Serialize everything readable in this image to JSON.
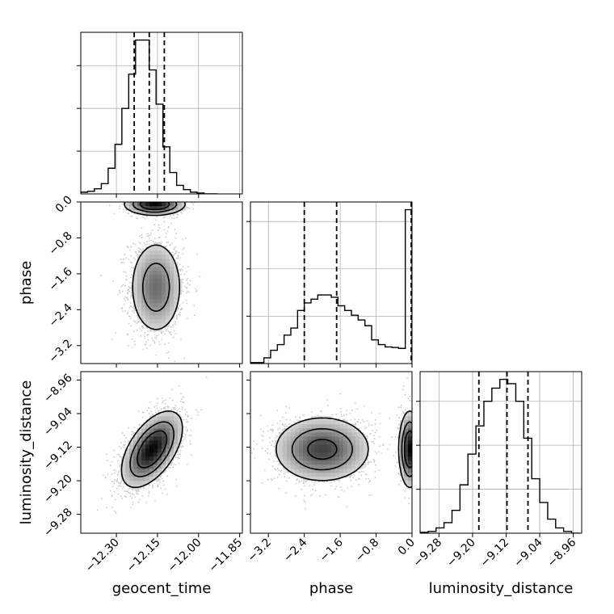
{
  "chart_data": {
    "type": "corner",
    "parameters": [
      "geocent_time",
      "phase",
      "luminosity_distance"
    ],
    "grid": true,
    "quantile_lines": "dashed",
    "axes": {
      "geocent_time": {
        "label": "geocent_time",
        "range": [
          -12.43,
          -11.84
        ],
        "ticks": [
          -12.3,
          -12.15,
          -12.0,
          -11.85
        ],
        "tick_labels": [
          "−12.30",
          "−12.15",
          "−12.00",
          "−11.85"
        ]
      },
      "phase": {
        "label": "phase",
        "range": [
          -3.6,
          0.0
        ],
        "ticks": [
          -3.2,
          -2.4,
          -1.6,
          -0.8,
          0.0
        ],
        "tick_labels": [
          "−3.2",
          "−2.4",
          "−1.6",
          "−0.8",
          "0.0"
        ]
      },
      "luminosity_distance": {
        "label": "luminosity_distance",
        "range": [
          -9.325,
          -8.94
        ],
        "ticks": [
          -9.28,
          -9.2,
          -9.12,
          -9.04,
          -8.96
        ],
        "tick_labels": [
          "−9.28",
          "−9.20",
          "−9.12",
          "−9.04",
          "−8.96"
        ]
      }
    },
    "histograms": {
      "geocent_time": {
        "bin_edges": [
          -12.43,
          -12.405,
          -12.38,
          -12.355,
          -12.33,
          -12.305,
          -12.28,
          -12.255,
          -12.23,
          -12.205,
          -12.18,
          -12.155,
          -12.13,
          -12.105,
          -12.08,
          -12.055,
          -12.03,
          -12.005,
          -11.98,
          -11.955,
          -11.93
        ],
        "counts": [
          2,
          3,
          6,
          12,
          30,
          58,
          100,
          140,
          180,
          180,
          145,
          105,
          55,
          25,
          10,
          5,
          2,
          1,
          0,
          0
        ],
        "quantiles": [
          -12.235,
          -12.18,
          -12.125
        ]
      },
      "phase": {
        "bin_edges": [
          -3.6,
          -3.45,
          -3.3,
          -3.15,
          -3.0,
          -2.85,
          -2.7,
          -2.55,
          -2.4,
          -2.25,
          -2.1,
          -1.95,
          -1.8,
          -1.65,
          -1.5,
          -1.35,
          -1.2,
          -1.05,
          -0.9,
          -0.75,
          -0.6,
          -0.45,
          -0.3,
          -0.15,
          0.0
        ],
        "counts": [
          2,
          2,
          12,
          28,
          40,
          60,
          75,
          112,
          128,
          136,
          145,
          145,
          140,
          122,
          112,
          102,
          92,
          80,
          50,
          40,
          35,
          34,
          32,
          325
        ],
        "quantiles": [
          -2.4,
          -1.68,
          0.0
        ]
      },
      "luminosity_distance": {
        "bin_edges": [
          -9.325,
          -9.306,
          -9.287,
          -9.268,
          -9.249,
          -9.23,
          -9.211,
          -9.192,
          -9.173,
          -9.154,
          -9.135,
          -9.116,
          -9.097,
          -9.078,
          -9.059,
          -9.04,
          -9.021,
          -9.002,
          -8.983,
          -8.964,
          -8.945
        ],
        "counts": [
          1,
          2,
          6,
          12,
          26,
          55,
          90,
          122,
          150,
          165,
          175,
          170,
          150,
          108,
          62,
          35,
          16,
          6,
          2,
          0
        ],
        "quantiles": [
          -9.185,
          -9.118,
          -9.068
        ]
      }
    },
    "joint_distributions": [
      {
        "x": "geocent_time",
        "y": "phase",
        "modes": [
          {
            "cx": -12.155,
            "cy": -1.9,
            "sx": 0.05,
            "sy": 0.55,
            "rho": 0.0,
            "weight": 0.7
          },
          {
            "cx": -12.16,
            "cy": -0.05,
            "sx": 0.055,
            "sy": 0.12,
            "rho": 0.0,
            "weight": 0.3
          }
        ]
      },
      {
        "x": "geocent_time",
        "y": "luminosity_distance",
        "modes": [
          {
            "cx": -12.17,
            "cy": -9.125,
            "sx": 0.055,
            "sy": 0.045,
            "rho": 0.55,
            "weight": 1.0
          }
        ]
      },
      {
        "x": "phase",
        "y": "luminosity_distance",
        "modes": [
          {
            "cx": -2.0,
            "cy": -9.125,
            "sx": 0.55,
            "sy": 0.04,
            "rho": 0.0,
            "weight": 0.75
          },
          {
            "cx": -0.05,
            "cy": -9.125,
            "sx": 0.12,
            "sy": 0.045,
            "rho": 0.0,
            "weight": 0.25
          }
        ]
      }
    ]
  }
}
